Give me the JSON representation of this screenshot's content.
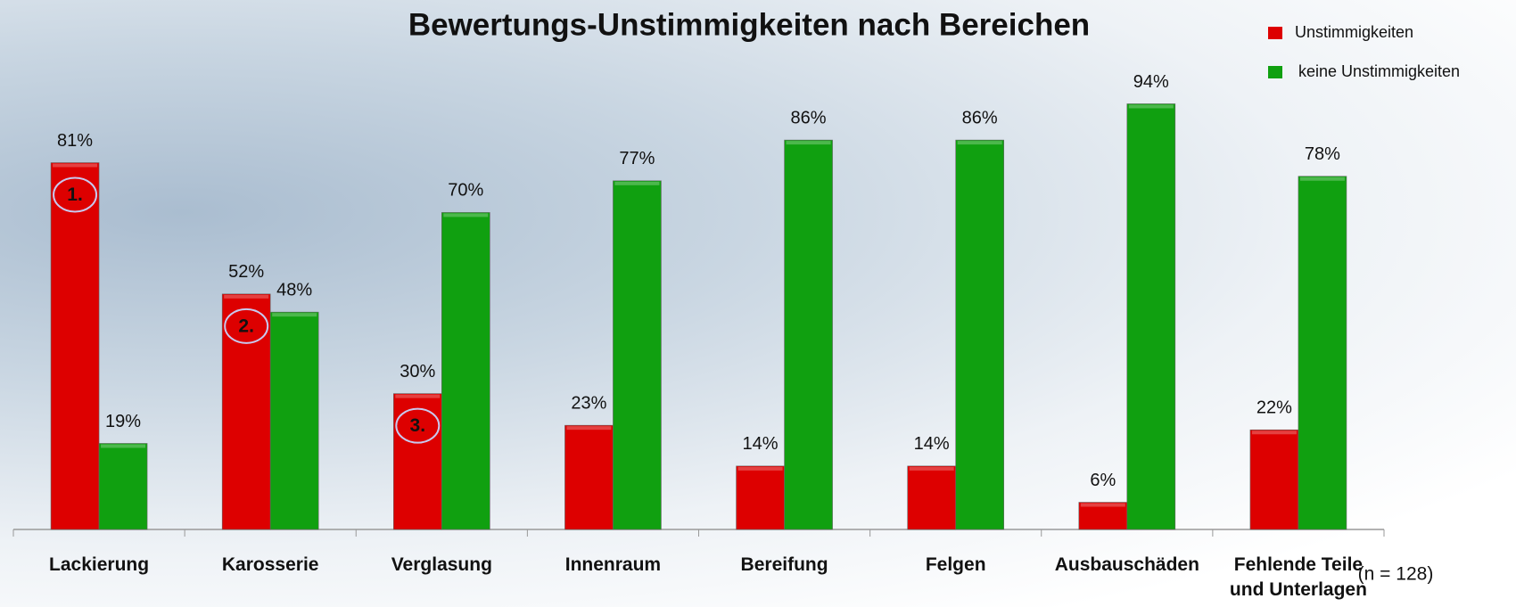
{
  "chart_data": {
    "type": "bar",
    "title": "Bewertungs-Unstimmigkeiten nach Bereichen",
    "categories": [
      "Lackierung",
      "Karosserie",
      "Verglasung",
      "Innenraum",
      "Bereifung",
      "Felgen",
      "Ausbauschäden",
      "Fehlende Teile und Unterlagen"
    ],
    "series": [
      {
        "name": "Unstimmigkeiten",
        "color": "#dd0000",
        "values": [
          81,
          52,
          30,
          23,
          14,
          14,
          6,
          22
        ],
        "value_labels": [
          "81%",
          "52%",
          "30%",
          "23%",
          "14%",
          "14%",
          "6%",
          "22%"
        ]
      },
      {
        "name": "keine Unstimmigkeiten",
        "color": "#10a010",
        "values": [
          19,
          48,
          70,
          77,
          86,
          86,
          94,
          78
        ],
        "value_labels": [
          "19%",
          "48%",
          "70%",
          "77%",
          "86%",
          "86%",
          "94%",
          "78%"
        ]
      }
    ],
    "ylim": [
      0,
      100
    ],
    "annotations": [
      "1.",
      "2.",
      "3."
    ],
    "note": "(n = 128)",
    "legend": "top-right"
  }
}
